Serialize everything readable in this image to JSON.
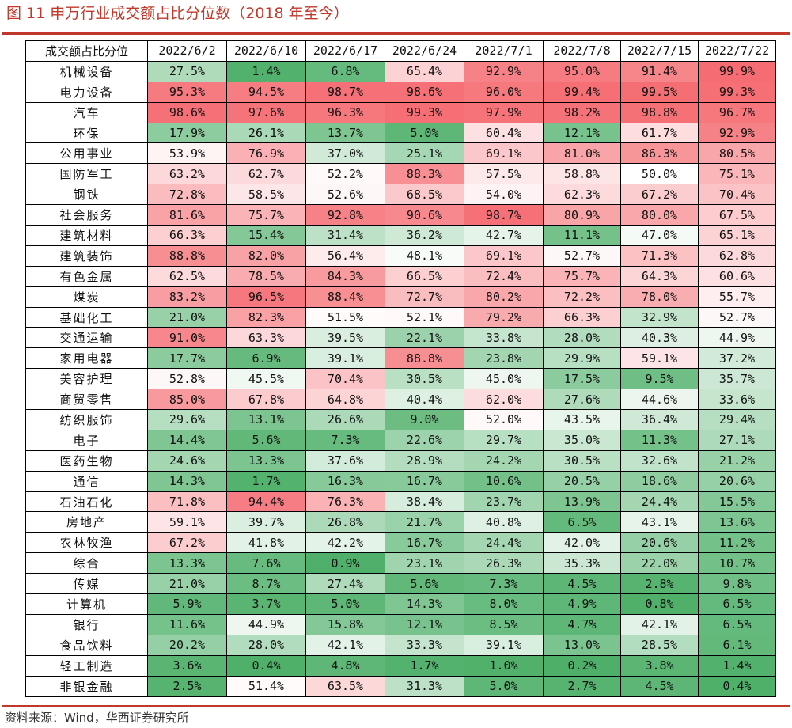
{
  "title": "图 11  申万行业成交额占比分位数（2018 年至今）",
  "source": "资料来源：Wind，华西证券研究所",
  "colors": {
    "low": "#4daf68",
    "mid": "#ffffff",
    "high": "#f56d73",
    "rule": "#c0392b"
  },
  "chart_data": {
    "type": "heatmap",
    "title": "图 11  申万行业成交额占比分位数（2018 年至今）",
    "corner_label": "成交额占比分位",
    "x": [
      "2022/6/2",
      "2022/6/10",
      "2022/6/17",
      "2022/6/24",
      "2022/7/1",
      "2022/7/8",
      "2022/7/15",
      "2022/7/22"
    ],
    "rows": [
      {
        "label": "机械设备",
        "values": [
          "27.5%",
          "1.4%",
          "6.8%",
          "65.4%",
          "92.9%",
          "95.0%",
          "91.4%",
          "99.9%"
        ]
      },
      {
        "label": "电力设备",
        "values": [
          "95.3%",
          "94.5%",
          "98.7%",
          "98.6%",
          "96.0%",
          "99.4%",
          "99.5%",
          "99.3%"
        ]
      },
      {
        "label": "汽车",
        "values": [
          "98.6%",
          "97.6%",
          "96.3%",
          "99.3%",
          "97.9%",
          "98.2%",
          "98.8%",
          "96.7%"
        ]
      },
      {
        "label": "环保",
        "values": [
          "17.9%",
          "26.1%",
          "13.7%",
          "5.0%",
          "60.4%",
          "12.1%",
          "61.7%",
          "92.9%"
        ]
      },
      {
        "label": "公用事业",
        "values": [
          "53.9%",
          "76.9%",
          "37.0%",
          "25.1%",
          "69.1%",
          "81.0%",
          "86.3%",
          "80.5%"
        ]
      },
      {
        "label": "国防军工",
        "values": [
          "63.2%",
          "62.7%",
          "52.2%",
          "88.3%",
          "57.5%",
          "58.8%",
          "50.0%",
          "75.1%"
        ]
      },
      {
        "label": "钢铁",
        "values": [
          "72.8%",
          "58.5%",
          "52.6%",
          "68.5%",
          "54.0%",
          "62.3%",
          "67.2%",
          "70.4%"
        ]
      },
      {
        "label": "社会服务",
        "values": [
          "81.6%",
          "75.7%",
          "92.8%",
          "90.6%",
          "98.7%",
          "80.9%",
          "80.0%",
          "67.5%"
        ]
      },
      {
        "label": "建筑材料",
        "values": [
          "66.3%",
          "15.4%",
          "31.4%",
          "36.2%",
          "42.7%",
          "11.1%",
          "47.0%",
          "65.1%"
        ]
      },
      {
        "label": "建筑装饰",
        "values": [
          "88.8%",
          "82.0%",
          "56.4%",
          "48.1%",
          "69.1%",
          "52.7%",
          "71.3%",
          "62.8%"
        ]
      },
      {
        "label": "有色金属",
        "values": [
          "62.5%",
          "78.5%",
          "84.3%",
          "66.5%",
          "72.4%",
          "75.7%",
          "64.3%",
          "60.6%"
        ]
      },
      {
        "label": "煤炭",
        "values": [
          "83.2%",
          "96.5%",
          "88.4%",
          "72.7%",
          "80.2%",
          "72.2%",
          "78.0%",
          "55.7%"
        ]
      },
      {
        "label": "基础化工",
        "values": [
          "21.0%",
          "82.3%",
          "51.5%",
          "52.1%",
          "79.2%",
          "66.3%",
          "32.9%",
          "52.7%"
        ]
      },
      {
        "label": "交通运输",
        "values": [
          "91.0%",
          "63.3%",
          "39.5%",
          "22.1%",
          "33.8%",
          "28.0%",
          "40.3%",
          "44.9%"
        ]
      },
      {
        "label": "家用电器",
        "values": [
          "17.7%",
          "6.9%",
          "39.1%",
          "88.8%",
          "23.8%",
          "29.9%",
          "59.1%",
          "37.2%"
        ]
      },
      {
        "label": "美容护理",
        "values": [
          "52.8%",
          "45.5%",
          "70.4%",
          "30.5%",
          "45.0%",
          "17.5%",
          "9.5%",
          "35.7%"
        ]
      },
      {
        "label": "商贸零售",
        "values": [
          "85.0%",
          "67.8%",
          "64.8%",
          "40.4%",
          "62.0%",
          "27.6%",
          "44.6%",
          "33.6%"
        ]
      },
      {
        "label": "纺织服饰",
        "values": [
          "29.6%",
          "13.1%",
          "26.6%",
          "9.0%",
          "52.0%",
          "43.5%",
          "36.4%",
          "29.4%"
        ]
      },
      {
        "label": "电子",
        "values": [
          "14.4%",
          "5.6%",
          "7.3%",
          "22.6%",
          "29.7%",
          "35.0%",
          "11.3%",
          "27.1%"
        ]
      },
      {
        "label": "医药生物",
        "values": [
          "24.6%",
          "13.3%",
          "37.6%",
          "28.9%",
          "24.2%",
          "30.5%",
          "32.6%",
          "21.2%"
        ]
      },
      {
        "label": "通信",
        "values": [
          "14.3%",
          "1.7%",
          "16.3%",
          "16.7%",
          "10.6%",
          "20.5%",
          "18.6%",
          "20.6%"
        ]
      },
      {
        "label": "石油石化",
        "values": [
          "71.8%",
          "94.4%",
          "76.3%",
          "38.4%",
          "23.7%",
          "13.9%",
          "24.4%",
          "15.5%"
        ]
      },
      {
        "label": "房地产",
        "values": [
          "59.1%",
          "39.7%",
          "26.8%",
          "21.7%",
          "40.8%",
          "6.5%",
          "43.1%",
          "13.6%"
        ]
      },
      {
        "label": "农林牧渔",
        "values": [
          "67.2%",
          "41.8%",
          "42.2%",
          "16.7%",
          "24.4%",
          "42.0%",
          "20.6%",
          "11.2%"
        ]
      },
      {
        "label": "综合",
        "values": [
          "13.3%",
          "7.6%",
          "0.9%",
          "23.1%",
          "26.3%",
          "35.3%",
          "22.0%",
          "10.7%"
        ]
      },
      {
        "label": "传媒",
        "values": [
          "21.0%",
          "8.7%",
          "27.4%",
          "5.6%",
          "7.3%",
          "4.5%",
          "2.8%",
          "9.8%"
        ]
      },
      {
        "label": "计算机",
        "values": [
          "5.9%",
          "3.7%",
          "5.0%",
          "14.3%",
          "8.0%",
          "4.9%",
          "0.8%",
          "6.5%"
        ]
      },
      {
        "label": "银行",
        "values": [
          "11.6%",
          "44.9%",
          "15.8%",
          "12.1%",
          "8.5%",
          "4.7%",
          "42.1%",
          "6.5%"
        ]
      },
      {
        "label": "食品饮料",
        "values": [
          "20.2%",
          "28.0%",
          "42.1%",
          "33.3%",
          "39.1%",
          "13.0%",
          "28.5%",
          "6.1%"
        ]
      },
      {
        "label": "轻工制造",
        "values": [
          "3.6%",
          "0.4%",
          "4.8%",
          "1.7%",
          "1.0%",
          "0.2%",
          "3.8%",
          "1.4%"
        ]
      },
      {
        "label": "非银金融",
        "values": [
          "2.5%",
          "51.4%",
          "63.5%",
          "31.3%",
          "5.0%",
          "2.7%",
          "4.5%",
          "0.4%"
        ]
      }
    ]
  }
}
